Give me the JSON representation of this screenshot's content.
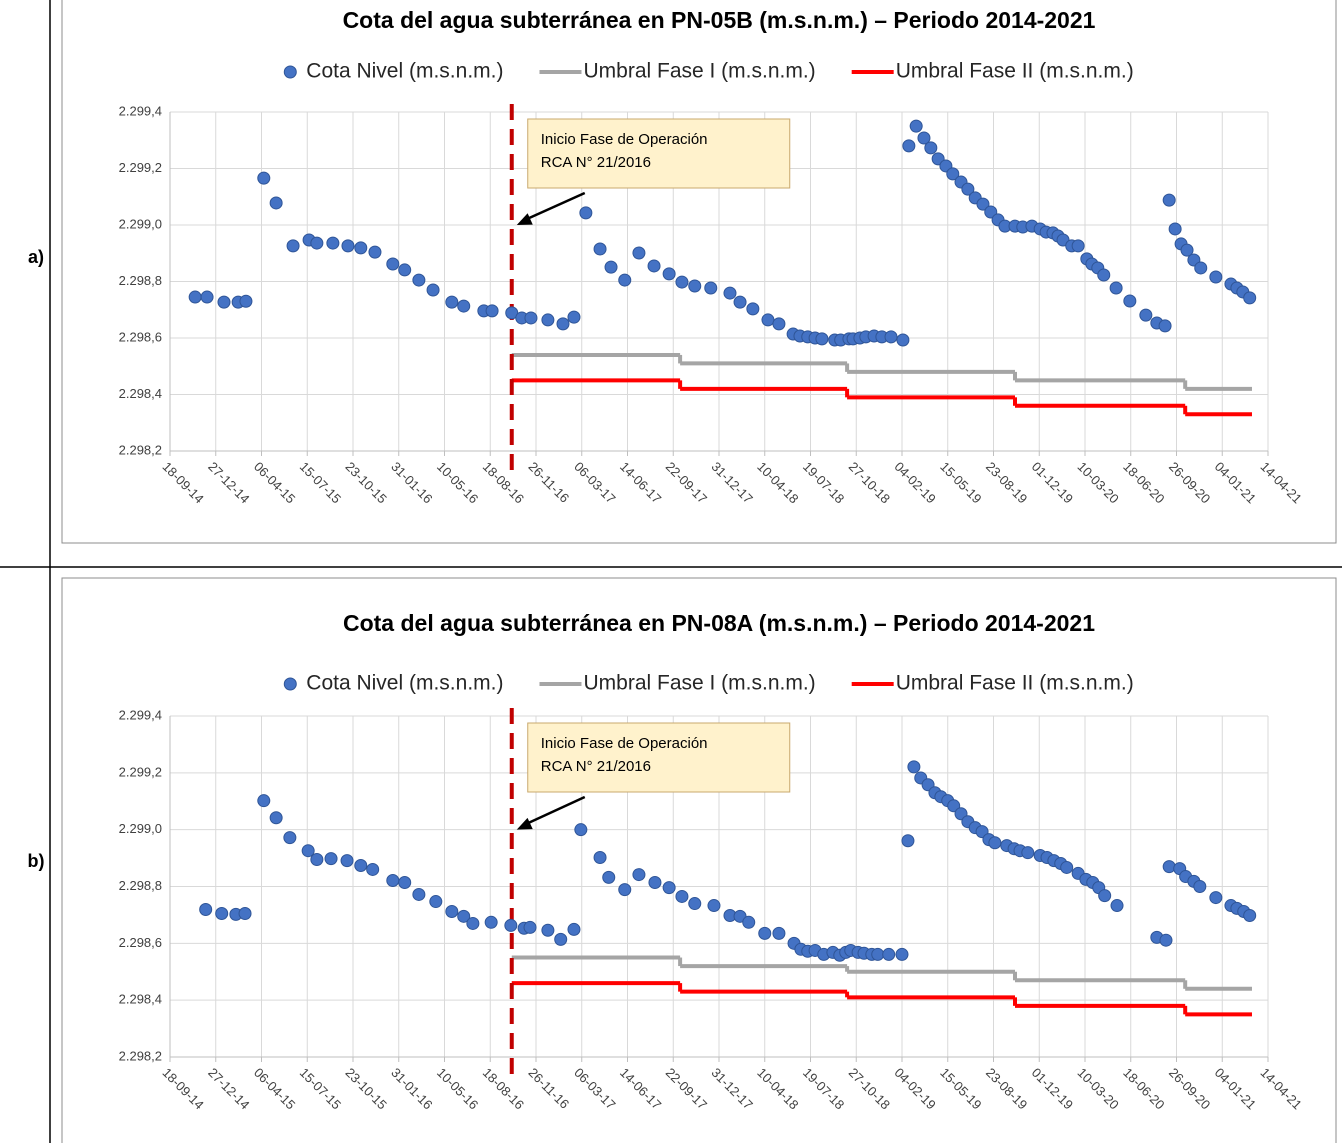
{
  "panel_labels": [
    "a)",
    "b)"
  ],
  "chart_data": [
    {
      "type": "scatter",
      "title": "Cota del agua subterránea en PN-05B (m.s.n.m.) – Periodo 2014-2021",
      "xlim": [
        "2014-09-18",
        "2021-04-14"
      ],
      "xticks": [
        {
          "value": "2014-09-18",
          "label": "18-09-14"
        },
        {
          "value": "2014-12-27",
          "label": "27-12-14"
        },
        {
          "value": "2015-04-06",
          "label": "06-04-15"
        },
        {
          "value": "2015-07-15",
          "label": "15-07-15"
        },
        {
          "value": "2015-10-23",
          "label": "23-10-15"
        },
        {
          "value": "2016-01-31",
          "label": "31-01-16"
        },
        {
          "value": "2016-05-10",
          "label": "10-05-16"
        },
        {
          "value": "2016-08-18",
          "label": "18-08-16"
        },
        {
          "value": "2016-11-26",
          "label": "26-11-16"
        },
        {
          "value": "2017-03-06",
          "label": "06-03-17"
        },
        {
          "value": "2017-06-14",
          "label": "14-06-17"
        },
        {
          "value": "2017-09-22",
          "label": "22-09-17"
        },
        {
          "value": "2017-12-31",
          "label": "31-12-17"
        },
        {
          "value": "2018-04-10",
          "label": "10-04-18"
        },
        {
          "value": "2018-07-19",
          "label": "19-07-18"
        },
        {
          "value": "2018-10-27",
          "label": "27-10-18"
        },
        {
          "value": "2019-02-04",
          "label": "04-02-19"
        },
        {
          "value": "2019-05-15",
          "label": "15-05-19"
        },
        {
          "value": "2019-08-23",
          "label": "23-08-19"
        },
        {
          "value": "2019-12-01",
          "label": "01-12-19"
        },
        {
          "value": "2020-03-10",
          "label": "10-03-20"
        },
        {
          "value": "2020-06-18",
          "label": "18-06-20"
        },
        {
          "value": "2020-09-26",
          "label": "26-09-20"
        },
        {
          "value": "2021-01-04",
          "label": "04-01-21"
        },
        {
          "value": "2021-04-14",
          "label": "14-04-21"
        }
      ],
      "ylim": [
        2298.2,
        2299.4
      ],
      "yticks": [
        {
          "value": 2298.2,
          "label": "2.298,2"
        },
        {
          "value": 2298.4,
          "label": "2.298,4"
        },
        {
          "value": 2298.6,
          "label": "2.298,6"
        },
        {
          "value": 2298.8,
          "label": "2.298,8"
        },
        {
          "value": 2299.0,
          "label": "2.299,0"
        },
        {
          "value": 2299.2,
          "label": "2.299,2"
        },
        {
          "value": 2299.4,
          "label": "2.299,4"
        }
      ],
      "grid": true,
      "annotation": {
        "x": "2016-10-04",
        "color": "#c00000",
        "text": [
          "Inicio Fase de Operación",
          "RCA N° 21/2016"
        ],
        "arrow_y": 2299.0
      },
      "series": [
        {
          "name": "Cota Nivel (m.s.n.m.)",
          "type": "scatter",
          "color": "#4472c4",
          "x": [
            "2014-11-12",
            "2014-12-08",
            "2015-01-14",
            "2015-02-14",
            "2015-03-03",
            "2015-04-11",
            "2015-05-08",
            "2015-06-14",
            "2015-07-19",
            "2015-08-05",
            "2015-09-09",
            "2015-10-12",
            "2015-11-09",
            "2015-12-10",
            "2016-01-18",
            "2016-02-13",
            "2016-03-15",
            "2016-04-15",
            "2016-05-26",
            "2016-06-21",
            "2016-08-04",
            "2016-08-22",
            "2016-10-04",
            "2016-10-26",
            "2016-11-15",
            "2016-12-22",
            "2017-01-24",
            "2017-02-17",
            "2017-03-15",
            "2017-04-15",
            "2017-05-09",
            "2017-06-08",
            "2017-07-09",
            "2017-08-11",
            "2017-09-13",
            "2017-10-11",
            "2017-11-08",
            "2017-12-13",
            "2018-01-24",
            "2018-02-15",
            "2018-03-15",
            "2018-04-17",
            "2018-05-11",
            "2018-06-11",
            "2018-06-26",
            "2018-07-13",
            "2018-07-29",
            "2018-08-13",
            "2018-09-10",
            "2018-09-23",
            "2018-10-11",
            "2018-10-20",
            "2018-11-04",
            "2018-11-17",
            "2018-12-05",
            "2018-12-22",
            "2019-01-11",
            "2019-02-06",
            "2019-02-19",
            "2019-03-07",
            "2019-03-24",
            "2019-04-08",
            "2019-04-24",
            "2019-05-11",
            "2019-05-26",
            "2019-06-13",
            "2019-06-28",
            "2019-07-14",
            "2019-07-31",
            "2019-08-17",
            "2019-09-02",
            "2019-09-17",
            "2019-10-09",
            "2019-10-26",
            "2019-11-15",
            "2019-12-03",
            "2019-12-16",
            "2019-12-31",
            "2020-01-11",
            "2020-01-22",
            "2020-02-10",
            "2020-02-24",
            "2020-03-14",
            "2020-03-25",
            "2020-04-07",
            "2020-04-20",
            "2020-05-17",
            "2020-06-16",
            "2020-07-21",
            "2020-08-14",
            "2020-09-01",
            "2020-09-10",
            "2020-09-23",
            "2020-10-06",
            "2020-10-19",
            "2020-11-03",
            "2020-11-18",
            "2020-12-21",
            "2021-01-23",
            "2021-02-05",
            "2021-02-18",
            "2021-03-05"
          ],
          "values": [
            2298.745,
            2298.745,
            2298.727,
            2298.727,
            2298.73,
            2299.166,
            2299.078,
            2298.926,
            2298.947,
            2298.936,
            2298.936,
            2298.926,
            2298.919,
            2298.904,
            2298.862,
            2298.841,
            2298.805,
            2298.77,
            2298.727,
            2298.713,
            2298.696,
            2298.696,
            2298.689,
            2298.671,
            2298.671,
            2298.664,
            2298.65,
            2298.674,
            2299.043,
            2298.915,
            2298.851,
            2298.805,
            2298.901,
            2298.855,
            2298.827,
            2298.798,
            2298.784,
            2298.777,
            2298.759,
            2298.727,
            2298.703,
            2298.664,
            2298.65,
            2298.614,
            2298.607,
            2298.604,
            2298.6,
            2298.597,
            2298.593,
            2298.593,
            2298.597,
            2298.597,
            2298.6,
            2298.604,
            2298.607,
            2298.604,
            2298.604,
            2298.593,
            2299.28,
            2299.35,
            2299.308,
            2299.273,
            2299.234,
            2299.209,
            2299.181,
            2299.152,
            2299.127,
            2299.096,
            2299.074,
            2299.046,
            2299.018,
            2298.996,
            2298.996,
            2298.993,
            2298.996,
            2298.986,
            2298.975,
            2298.972,
            2298.961,
            2298.947,
            2298.926,
            2298.926,
            2298.88,
            2298.862,
            2298.848,
            2298.823,
            2298.777,
            2298.731,
            2298.681,
            2298.653,
            2298.643,
            2299.088,
            2298.986,
            2298.933,
            2298.911,
            2298.876,
            2298.848,
            2298.816,
            2298.791,
            2298.777,
            2298.763,
            2298.742
          ]
        },
        {
          "name": "Umbral Fase I (m.s.n.m.)",
          "type": "step",
          "color": "#a5a5a5",
          "x": [
            "2016-10-04",
            "2017-10-07",
            "2018-10-07",
            "2019-10-09",
            "2020-10-15",
            "2021-03-10"
          ],
          "values": [
            2298.54,
            2298.51,
            2298.48,
            2298.45,
            2298.42,
            2298.42
          ]
        },
        {
          "name": "Umbral Fase II (m.s.n.m.)",
          "type": "step",
          "color": "#ff0000",
          "x": [
            "2016-10-04",
            "2017-10-07",
            "2018-10-07",
            "2019-10-09",
            "2020-10-15",
            "2021-03-10"
          ],
          "values": [
            2298.45,
            2298.42,
            2298.39,
            2298.36,
            2298.33,
            2298.33
          ]
        }
      ]
    },
    {
      "type": "scatter",
      "title": "Cota del agua subterránea en PN-08A (m.s.n.m.) – Periodo 2014-2021",
      "xlim": [
        "2014-09-18",
        "2021-04-14"
      ],
      "xticks": [
        {
          "value": "2014-09-18",
          "label": "18-09-14"
        },
        {
          "value": "2014-12-27",
          "label": "27-12-14"
        },
        {
          "value": "2015-04-06",
          "label": "06-04-15"
        },
        {
          "value": "2015-07-15",
          "label": "15-07-15"
        },
        {
          "value": "2015-10-23",
          "label": "23-10-15"
        },
        {
          "value": "2016-01-31",
          "label": "31-01-16"
        },
        {
          "value": "2016-05-10",
          "label": "10-05-16"
        },
        {
          "value": "2016-08-18",
          "label": "18-08-16"
        },
        {
          "value": "2016-11-26",
          "label": "26-11-16"
        },
        {
          "value": "2017-03-06",
          "label": "06-03-17"
        },
        {
          "value": "2017-06-14",
          "label": "14-06-17"
        },
        {
          "value": "2017-09-22",
          "label": "22-09-17"
        },
        {
          "value": "2017-12-31",
          "label": "31-12-17"
        },
        {
          "value": "2018-04-10",
          "label": "10-04-18"
        },
        {
          "value": "2018-07-19",
          "label": "19-07-18"
        },
        {
          "value": "2018-10-27",
          "label": "27-10-18"
        },
        {
          "value": "2019-02-04",
          "label": "04-02-19"
        },
        {
          "value": "2019-05-15",
          "label": "15-05-19"
        },
        {
          "value": "2019-08-23",
          "label": "23-08-19"
        },
        {
          "value": "2019-12-01",
          "label": "01-12-19"
        },
        {
          "value": "2020-03-10",
          "label": "10-03-20"
        },
        {
          "value": "2020-06-18",
          "label": "18-06-20"
        },
        {
          "value": "2020-09-26",
          "label": "26-09-20"
        },
        {
          "value": "2021-01-04",
          "label": "04-01-21"
        },
        {
          "value": "2021-04-14",
          "label": "14-04-21"
        }
      ],
      "ylim": [
        2298.2,
        2299.4
      ],
      "yticks": [
        {
          "value": 2298.2,
          "label": "2.298,2"
        },
        {
          "value": 2298.4,
          "label": "2.298,4"
        },
        {
          "value": 2298.6,
          "label": "2.298,6"
        },
        {
          "value": 2298.8,
          "label": "2.298,8"
        },
        {
          "value": 2299.0,
          "label": "2.299,0"
        },
        {
          "value": 2299.2,
          "label": "2.299,2"
        },
        {
          "value": 2299.4,
          "label": "2.299,4"
        }
      ],
      "grid": true,
      "annotation": {
        "x": "2016-10-04",
        "color": "#c00000",
        "text": [
          "Inicio Fase de Operación",
          "RCA N° 21/2016"
        ],
        "arrow_y": 2299.0
      },
      "series": [
        {
          "name": "Cota Nivel (m.s.n.m.)",
          "type": "scatter",
          "color": "#4472c4",
          "x": [
            "2014-12-05",
            "2015-01-09",
            "2015-02-09",
            "2015-03-01",
            "2015-04-11",
            "2015-05-08",
            "2015-06-07",
            "2015-07-17",
            "2015-08-05",
            "2015-09-05",
            "2015-10-10",
            "2015-11-09",
            "2015-12-05",
            "2016-01-18",
            "2016-02-13",
            "2016-03-15",
            "2016-04-21",
            "2016-05-26",
            "2016-06-21",
            "2016-07-11",
            "2016-08-20",
            "2016-10-02",
            "2016-10-31",
            "2016-11-13",
            "2016-12-22",
            "2017-01-19",
            "2017-02-17",
            "2017-03-04",
            "2017-04-15",
            "2017-05-04",
            "2017-06-08",
            "2017-07-09",
            "2017-08-13",
            "2017-09-13",
            "2017-10-11",
            "2017-11-08",
            "2017-12-20",
            "2018-01-24",
            "2018-02-15",
            "2018-03-06",
            "2018-04-10",
            "2018-05-11",
            "2018-06-13",
            "2018-06-28",
            "2018-07-13",
            "2018-07-29",
            "2018-08-17",
            "2018-09-06",
            "2018-09-21",
            "2018-10-04",
            "2018-10-15",
            "2018-10-31",
            "2018-11-13",
            "2018-11-30",
            "2018-12-13",
            "2019-01-06",
            "2019-02-04",
            "2019-02-17",
            "2019-03-02",
            "2019-03-17",
            "2019-04-02",
            "2019-04-17",
            "2019-04-30",
            "2019-05-15",
            "2019-05-28",
            "2019-06-13",
            "2019-06-28",
            "2019-07-14",
            "2019-07-29",
            "2019-08-13",
            "2019-08-26",
            "2019-09-21",
            "2019-10-07",
            "2019-10-20",
            "2019-11-06",
            "2019-12-03",
            "2019-12-18",
            "2020-01-02",
            "2020-01-17",
            "2020-01-30",
            "2020-02-24",
            "2020-03-12",
            "2020-03-27",
            "2020-04-09",
            "2020-04-22",
            "2020-05-19",
            "2020-08-14",
            "2020-09-03",
            "2020-09-10",
            "2020-10-03",
            "2020-10-16",
            "2020-11-03",
            "2020-11-16",
            "2020-12-21",
            "2021-01-23",
            "2021-02-05",
            "2021-02-20",
            "2021-03-05"
          ],
          "values": [
            2298.719,
            2298.705,
            2298.702,
            2298.705,
            2299.102,
            2299.042,
            2298.972,
            2298.926,
            2298.895,
            2298.898,
            2298.891,
            2298.874,
            2298.86,
            2298.821,
            2298.814,
            2298.772,
            2298.747,
            2298.712,
            2298.695,
            2298.67,
            2298.674,
            2298.663,
            2298.653,
            2298.656,
            2298.646,
            2298.614,
            2298.649,
            2299.0,
            2298.902,
            2298.832,
            2298.789,
            2298.842,
            2298.814,
            2298.796,
            2298.765,
            2298.74,
            2298.733,
            2298.698,
            2298.695,
            2298.674,
            2298.635,
            2298.635,
            2298.6,
            2298.579,
            2298.572,
            2298.575,
            2298.561,
            2298.568,
            2298.558,
            2298.568,
            2298.575,
            2298.568,
            2298.565,
            2298.561,
            2298.561,
            2298.561,
            2298.561,
            2298.961,
            2299.221,
            2299.182,
            2299.158,
            2299.13,
            2299.116,
            2299.102,
            2299.084,
            2299.056,
            2299.028,
            2299.007,
            2298.993,
            2298.965,
            2298.954,
            2298.944,
            2298.933,
            2298.926,
            2298.919,
            2298.909,
            2298.902,
            2298.891,
            2298.881,
            2298.867,
            2298.846,
            2298.825,
            2298.814,
            2298.796,
            2298.768,
            2298.733,
            2298.621,
            2298.611,
            2298.87,
            2298.863,
            2298.835,
            2298.818,
            2298.8,
            2298.761,
            2298.733,
            2298.723,
            2298.712,
            2298.698
          ]
        },
        {
          "name": "Umbral Fase I (m.s.n.m.)",
          "type": "step",
          "color": "#a5a5a5",
          "x": [
            "2016-10-04",
            "2017-10-07",
            "2018-10-07",
            "2019-10-09",
            "2020-10-15",
            "2021-03-10"
          ],
          "values": [
            2298.55,
            2298.52,
            2298.5,
            2298.47,
            2298.44,
            2298.44
          ]
        },
        {
          "name": "Umbral Fase II (m.s.n.m.)",
          "type": "step",
          "color": "#ff0000",
          "x": [
            "2016-10-04",
            "2017-10-07",
            "2018-10-07",
            "2019-10-09",
            "2020-10-15",
            "2021-03-10"
          ],
          "values": [
            2298.46,
            2298.43,
            2298.41,
            2298.38,
            2298.35,
            2298.35
          ]
        }
      ]
    }
  ]
}
